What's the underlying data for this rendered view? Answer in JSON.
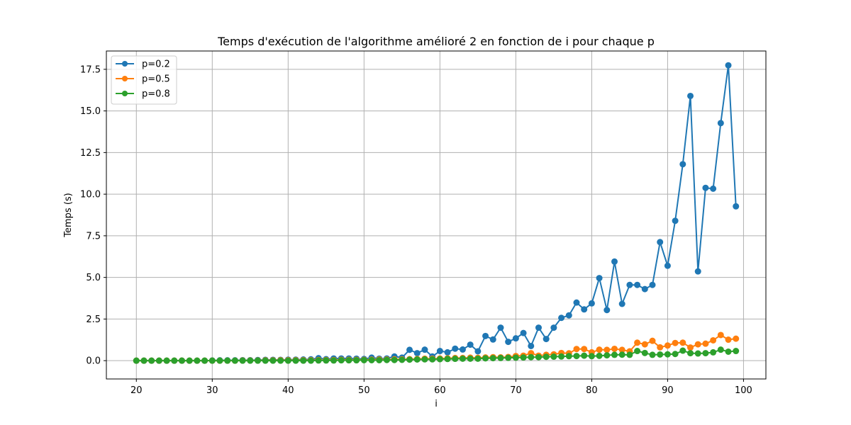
{
  "chart_data": {
    "type": "line",
    "title": "Temps d'exécution de l'algorithme amélioré 2 en fonction de i pour chaque p",
    "xlabel": "i",
    "ylabel": "Temps (s)",
    "xlim": [
      16.05,
      102.95
    ],
    "ylim": [
      -1.1,
      18.6
    ],
    "xticks": [
      20,
      30,
      40,
      50,
      60,
      70,
      80,
      90,
      100
    ],
    "xtick_labels": [
      "20",
      "30",
      "40",
      "50",
      "60",
      "70",
      "80",
      "90",
      "100"
    ],
    "yticks": [
      0,
      2.5,
      5,
      7.5,
      10,
      12.5,
      15,
      17.5
    ],
    "ytick_labels": [
      "0.0",
      "2.5",
      "5.0",
      "7.5",
      "10.0",
      "12.5",
      "15.0",
      "17.5"
    ],
    "grid": true,
    "legend_position": "top-left",
    "marker": "circle",
    "x": [
      20,
      21,
      22,
      23,
      24,
      25,
      26,
      27,
      28,
      29,
      30,
      31,
      32,
      33,
      34,
      35,
      36,
      37,
      38,
      39,
      40,
      41,
      42,
      43,
      44,
      45,
      46,
      47,
      48,
      49,
      50,
      51,
      52,
      53,
      54,
      55,
      56,
      57,
      58,
      59,
      60,
      61,
      62,
      63,
      64,
      65,
      66,
      67,
      68,
      69,
      70,
      71,
      72,
      73,
      74,
      75,
      76,
      77,
      78,
      79,
      80,
      81,
      82,
      83,
      84,
      85,
      86,
      87,
      88,
      89,
      90,
      91,
      92,
      93,
      94,
      95,
      96,
      97,
      98,
      99
    ],
    "series": [
      {
        "name": "p=0.2",
        "color": "#1f77b4",
        "values": [
          0,
          0,
          0,
          0,
          0,
          0,
          0,
          0,
          0,
          0,
          0.01,
          0.02,
          0.02,
          0.02,
          0.03,
          0.03,
          0.04,
          0.05,
          0.05,
          0.05,
          0.06,
          0.06,
          0.07,
          0.08,
          0.15,
          0.09,
          0.13,
          0.13,
          0.13,
          0.12,
          0.1,
          0.18,
          0.12,
          0.13,
          0.25,
          0.18,
          0.65,
          0.45,
          0.66,
          0.25,
          0.58,
          0.5,
          0.72,
          0.67,
          0.96,
          0.56,
          1.48,
          1.27,
          1.98,
          1.13,
          1.34,
          1.66,
          0.88,
          1.98,
          1.3,
          1.98,
          2.57,
          2.72,
          3.49,
          3.08,
          3.44,
          4.96,
          3.04,
          5.95,
          3.41,
          4.55,
          4.55,
          4.3,
          4.55,
          7.12,
          5.7,
          8.4,
          11.8,
          15.9,
          5.36,
          10.38,
          10.33,
          14.27,
          17.74,
          9.27
        ]
      },
      {
        "name": "p=0.5",
        "color": "#ff7f0e",
        "values": [
          0,
          0,
          0,
          0,
          0,
          0,
          0,
          0,
          0,
          0,
          0,
          0,
          0,
          0,
          0.01,
          0.01,
          0.01,
          0.02,
          0.02,
          0.03,
          0.03,
          0.03,
          0.03,
          0.03,
          0.04,
          0.04,
          0.04,
          0.05,
          0.05,
          0.05,
          0.05,
          0.06,
          0.07,
          0.07,
          0.08,
          0.08,
          0.09,
          0.1,
          0.12,
          0.12,
          0.13,
          0.14,
          0.16,
          0.16,
          0.18,
          0.17,
          0.19,
          0.21,
          0.2,
          0.22,
          0.28,
          0.3,
          0.45,
          0.3,
          0.35,
          0.38,
          0.46,
          0.44,
          0.7,
          0.7,
          0.5,
          0.66,
          0.65,
          0.71,
          0.65,
          0.56,
          1.08,
          0.98,
          1.19,
          0.8,
          0.91,
          1.06,
          1.08,
          0.79,
          0.98,
          1.02,
          1.22,
          1.54,
          1.26,
          1.32
        ]
      },
      {
        "name": "p=0.8",
        "color": "#2ca02c",
        "values": [
          0,
          0,
          0,
          0,
          0,
          0,
          0,
          0,
          0,
          0,
          0,
          0,
          0,
          0,
          0,
          0,
          0,
          0,
          0,
          0,
          0,
          0,
          0,
          0,
          0.01,
          0.01,
          0.01,
          0.02,
          0.02,
          0.02,
          0.03,
          0.03,
          0.03,
          0.04,
          0.04,
          0.05,
          0.06,
          0.07,
          0.08,
          0.08,
          0.09,
          0.1,
          0.11,
          0.12,
          0.12,
          0.12,
          0.14,
          0.15,
          0.16,
          0.17,
          0.18,
          0.19,
          0.21,
          0.21,
          0.23,
          0.24,
          0.25,
          0.27,
          0.28,
          0.3,
          0.27,
          0.29,
          0.32,
          0.35,
          0.36,
          0.35,
          0.58,
          0.46,
          0.35,
          0.37,
          0.38,
          0.4,
          0.6,
          0.45,
          0.43,
          0.45,
          0.5,
          0.66,
          0.54,
          0.58
        ]
      }
    ]
  }
}
